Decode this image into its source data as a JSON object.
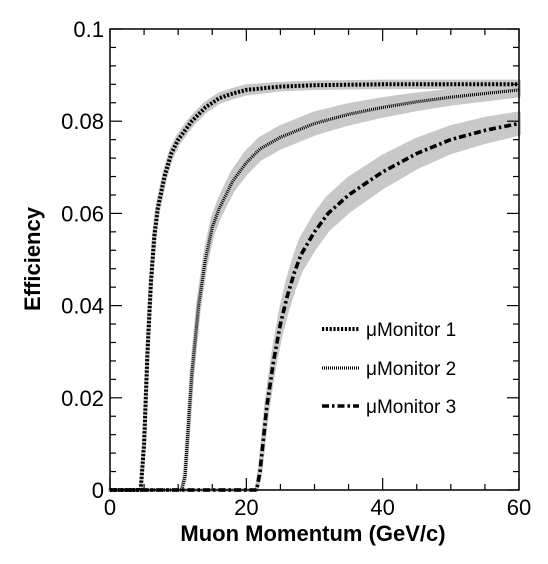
{
  "chart_data": {
    "type": "line",
    "title": "",
    "xlabel": "Muon Momentum (GeV/c)",
    "ylabel": "Efficiency",
    "xlim": [
      0,
      60
    ],
    "ylim": [
      0,
      0.1
    ],
    "x_ticks": [
      0,
      20,
      40,
      60
    ],
    "y_ticks": [
      0,
      0.02,
      0.04,
      0.06,
      0.08,
      0.1
    ],
    "x_tick_labels": [
      "0",
      "20",
      "40",
      "60"
    ],
    "y_tick_labels": [
      "0",
      "0.02",
      "0.04",
      "0.06",
      "0.08",
      "0.1"
    ],
    "grid": false,
    "legend_position": "center-right",
    "band_color": "#c8c8c8",
    "line_color": "#000000",
    "series": [
      {
        "name": "μMonitor 1",
        "style": "dotted",
        "x": [
          0,
          4.5,
          5.0,
          5.5,
          6.0,
          6.5,
          7.0,
          8.0,
          9.0,
          10.0,
          11.0,
          12.0,
          14.0,
          16.0,
          18.0,
          20.0,
          25.0,
          30.0,
          40.0,
          50.0,
          60.0
        ],
        "y": [
          0,
          0,
          0.01,
          0.03,
          0.045,
          0.055,
          0.061,
          0.068,
          0.073,
          0.076,
          0.078,
          0.08,
          0.083,
          0.085,
          0.086,
          0.0868,
          0.0875,
          0.0878,
          0.088,
          0.088,
          0.088
        ],
        "band_halfwidth": [
          0,
          0,
          0.0005,
          0.0008,
          0.0008,
          0.0008,
          0.0008,
          0.0008,
          0.0008,
          0.0008,
          0.0008,
          0.0008,
          0.0008,
          0.0008,
          0.0008,
          0.0008,
          0.0006,
          0.0006,
          0.0006,
          0.0006,
          0.0006
        ]
      },
      {
        "name": "μMonitor 2",
        "style": "fine-dotted",
        "x": [
          0,
          10.5,
          11.0,
          11.5,
          12.0,
          13.0,
          14.0,
          15.0,
          16.0,
          18.0,
          20.0,
          22.0,
          25.0,
          30.0,
          35.0,
          40.0,
          45.0,
          50.0,
          55.0,
          60.0
        ],
        "y": [
          0,
          0,
          0.003,
          0.014,
          0.025,
          0.04,
          0.05,
          0.057,
          0.061,
          0.067,
          0.071,
          0.074,
          0.0765,
          0.0795,
          0.0815,
          0.083,
          0.0842,
          0.0852,
          0.086,
          0.0868
        ],
        "band_halfwidth": [
          0,
          0,
          0.0005,
          0.0008,
          0.001,
          0.0012,
          0.0014,
          0.0016,
          0.0018,
          0.002,
          0.0022,
          0.0022,
          0.0022,
          0.0022,
          0.002,
          0.0018,
          0.0016,
          0.0014,
          0.0013,
          0.0012
        ]
      },
      {
        "name": "μMonitor 3",
        "style": "dash-dot",
        "x": [
          0,
          21.5,
          22.0,
          22.5,
          23.0,
          24.0,
          25.0,
          26.0,
          27.0,
          28.0,
          30.0,
          32.0,
          35.0,
          38.0,
          40.0,
          45.0,
          50.0,
          55.0,
          60.0
        ],
        "y": [
          0,
          0,
          0.004,
          0.011,
          0.018,
          0.028,
          0.036,
          0.042,
          0.047,
          0.051,
          0.056,
          0.06,
          0.064,
          0.067,
          0.069,
          0.073,
          0.076,
          0.078,
          0.0795
        ],
        "band_halfwidth": [
          0,
          0,
          0.0008,
          0.0012,
          0.0015,
          0.002,
          0.0025,
          0.003,
          0.0032,
          0.0034,
          0.0035,
          0.0035,
          0.0035,
          0.0034,
          0.0033,
          0.003,
          0.0027,
          0.0025,
          0.0022
        ]
      }
    ]
  }
}
